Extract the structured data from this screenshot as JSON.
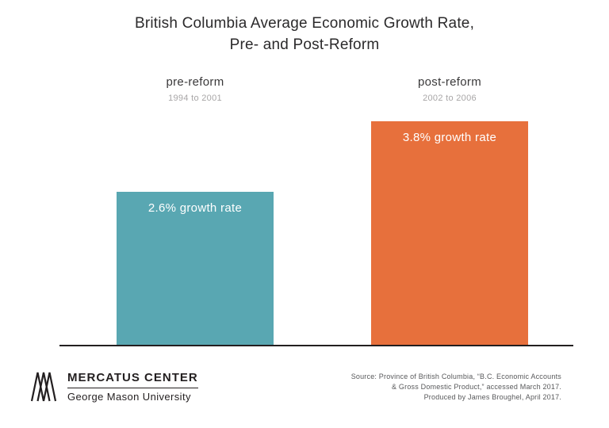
{
  "title": {
    "line1": "British Columbia Average Economic Growth Rate,",
    "line2": "Pre- and Post-Reform"
  },
  "chart_data": {
    "type": "bar",
    "title": "British Columbia Average Economic Growth Rate, Pre- and Post-Reform",
    "categories": [
      "pre-reform",
      "post-reform"
    ],
    "category_periods": [
      "1994 to 2001",
      "2002 to 2006"
    ],
    "values": [
      2.6,
      3.8
    ],
    "value_unit": "% growth rate",
    "bar_labels": [
      "2.6% growth rate",
      "3.8% growth rate"
    ],
    "bar_colors": [
      "#59a7b2",
      "#e7703c"
    ],
    "ylim": [
      0,
      3.8
    ],
    "grid": false,
    "legend": false,
    "baseline_color": "#231f20"
  },
  "footer": {
    "brand": {
      "name": "MERCATUS CENTER",
      "subname": "George Mason University"
    },
    "source": {
      "line1": "Source: Province of British Columbia, “B.C. Economic Accounts",
      "line2": "& Gross Domestic Product,” accessed March 2017.",
      "line3": "Produced by James Broughel, April 2017."
    }
  }
}
